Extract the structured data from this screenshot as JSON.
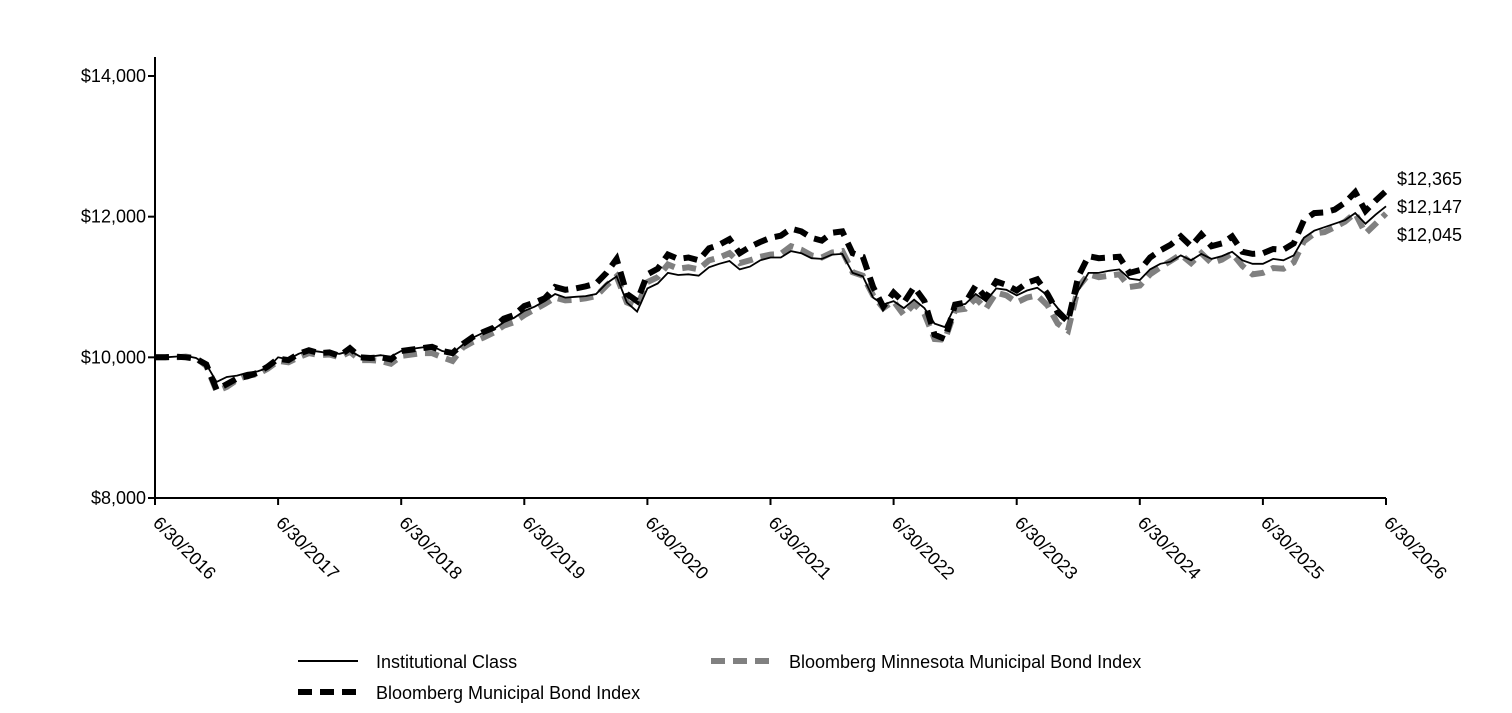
{
  "chart_data": {
    "type": "line",
    "title": "",
    "xlabel": "",
    "ylabel": "",
    "ylim": [
      8000,
      14000
    ],
    "y_ticks": [
      8000,
      10000,
      12000,
      14000
    ],
    "y_tick_labels": [
      "$8,000",
      "$10,000",
      "$12,000",
      "$14,000"
    ],
    "x_range": [
      0,
      120
    ],
    "x_ticks": [
      0,
      12,
      24,
      36,
      48,
      60,
      72,
      84,
      96,
      108,
      120
    ],
    "x_tick_labels": [
      "6/30/2016",
      "6/30/2017",
      "6/30/2018",
      "6/30/2019",
      "6/30/2020",
      "6/30/2021",
      "6/30/2022",
      "6/30/2023",
      "6/30/2024",
      "6/30/2025",
      "6/30/2026"
    ],
    "grid": false,
    "legend_position": "bottom",
    "end_labels": [
      "$12,365",
      "$12,147",
      "$12,045"
    ],
    "series": [
      {
        "name": "Institutional Class",
        "style": "solid-thin",
        "color": "#000000",
        "values": [
          10000,
          10000,
          10010,
          10020,
          9990,
          9900,
          9650,
          9720,
          9740,
          9780,
          9800,
          9850,
          10000,
          9970,
          10050,
          10100,
          10080,
          10060,
          10050,
          10090,
          10010,
          10010,
          10030,
          10010,
          10090,
          10120,
          10140,
          10160,
          10090,
          10060,
          10180,
          10280,
          10350,
          10400,
          10500,
          10560,
          10660,
          10720,
          10800,
          10900,
          10850,
          10860,
          10870,
          10900,
          11050,
          11150,
          10780,
          10650,
          10980,
          11050,
          11200,
          11170,
          11180,
          11160,
          11280,
          11330,
          11370,
          11250,
          11290,
          11380,
          11420,
          11420,
          11510,
          11480,
          11410,
          11400,
          11460,
          11470,
          11200,
          11150,
          10850,
          10750,
          10800,
          10700,
          10820,
          10700,
          10480,
          10430,
          10730,
          10760,
          10900,
          10800,
          10980,
          10960,
          10880,
          10950,
          10990,
          10880,
          10700,
          10550,
          10950,
          11200,
          11200,
          11230,
          11250,
          11120,
          11100,
          11250,
          11330,
          11360,
          11450,
          11380,
          11470,
          11400,
          11440,
          11500,
          11380,
          11330,
          11330,
          11400,
          11380,
          11450,
          11700,
          11800,
          11850,
          11900,
          11950,
          12050,
          11900,
          12030,
          12147
        ]
      },
      {
        "name": "Bloomberg Municipal Bond Index",
        "style": "dashed-thick",
        "color": "#000000",
        "values": [
          10000,
          10000,
          10010,
          10000,
          9980,
          9900,
          9540,
          9620,
          9700,
          9730,
          9780,
          9870,
          9980,
          9960,
          10050,
          10100,
          10060,
          10070,
          10020,
          10130,
          10000,
          9990,
          10000,
          9970,
          10090,
          10110,
          10130,
          10150,
          10090,
          10060,
          10190,
          10290,
          10360,
          10420,
          10550,
          10600,
          10730,
          10780,
          10840,
          11000,
          10960,
          10980,
          11010,
          11050,
          11200,
          11400,
          10900,
          10800,
          11180,
          11260,
          11460,
          11400,
          11420,
          11380,
          11550,
          11600,
          11680,
          11480,
          11570,
          11640,
          11700,
          11730,
          11830,
          11790,
          11700,
          11660,
          11770,
          11790,
          11480,
          11430,
          11000,
          10720,
          10920,
          10780,
          11000,
          10800,
          10320,
          10260,
          10750,
          10780,
          11020,
          10850,
          11080,
          11030,
          10950,
          11060,
          11110,
          10900,
          10640,
          10510,
          11150,
          11440,
          11410,
          11420,
          11430,
          11200,
          11240,
          11420,
          11520,
          11600,
          11720,
          11580,
          11750,
          11580,
          11620,
          11720,
          11500,
          11470,
          11480,
          11540,
          11530,
          11620,
          11950,
          12050,
          12060,
          12100,
          12200,
          12350,
          12080,
          12230,
          12365
        ]
      },
      {
        "name": "Bloomberg Minnesota Municipal Bond Index",
        "style": "dashed-thick",
        "color": "#808080",
        "values": [
          10000,
          10000,
          10000,
          10010,
          9990,
          9880,
          9520,
          9580,
          9680,
          9740,
          9760,
          9840,
          9950,
          9930,
          10000,
          10060,
          10030,
          10040,
          10000,
          10080,
          9960,
          9960,
          9950,
          9910,
          10020,
          10040,
          10060,
          10060,
          10000,
          9950,
          10140,
          10220,
          10280,
          10350,
          10450,
          10500,
          10600,
          10680,
          10760,
          10850,
          10810,
          10820,
          10840,
          10870,
          11020,
          11150,
          10780,
          10720,
          11070,
          11140,
          11320,
          11260,
          11280,
          11250,
          11380,
          11420,
          11480,
          11340,
          11380,
          11430,
          11460,
          11470,
          11580,
          11530,
          11450,
          11420,
          11490,
          11510,
          11210,
          11160,
          10880,
          10700,
          10800,
          10600,
          10760,
          10620,
          10260,
          10250,
          10670,
          10690,
          10840,
          10690,
          10920,
          10880,
          10780,
          10850,
          10880,
          10740,
          10480,
          10380,
          11000,
          11180,
          11140,
          11160,
          11180,
          11000,
          11020,
          11180,
          11280,
          11370,
          11460,
          11340,
          11480,
          11340,
          11390,
          11480,
          11300,
          11180,
          11200,
          11270,
          11260,
          11350,
          11650,
          11760,
          11780,
          11850,
          11930,
          12050,
          11760,
          11900,
          12045
        ]
      }
    ]
  }
}
